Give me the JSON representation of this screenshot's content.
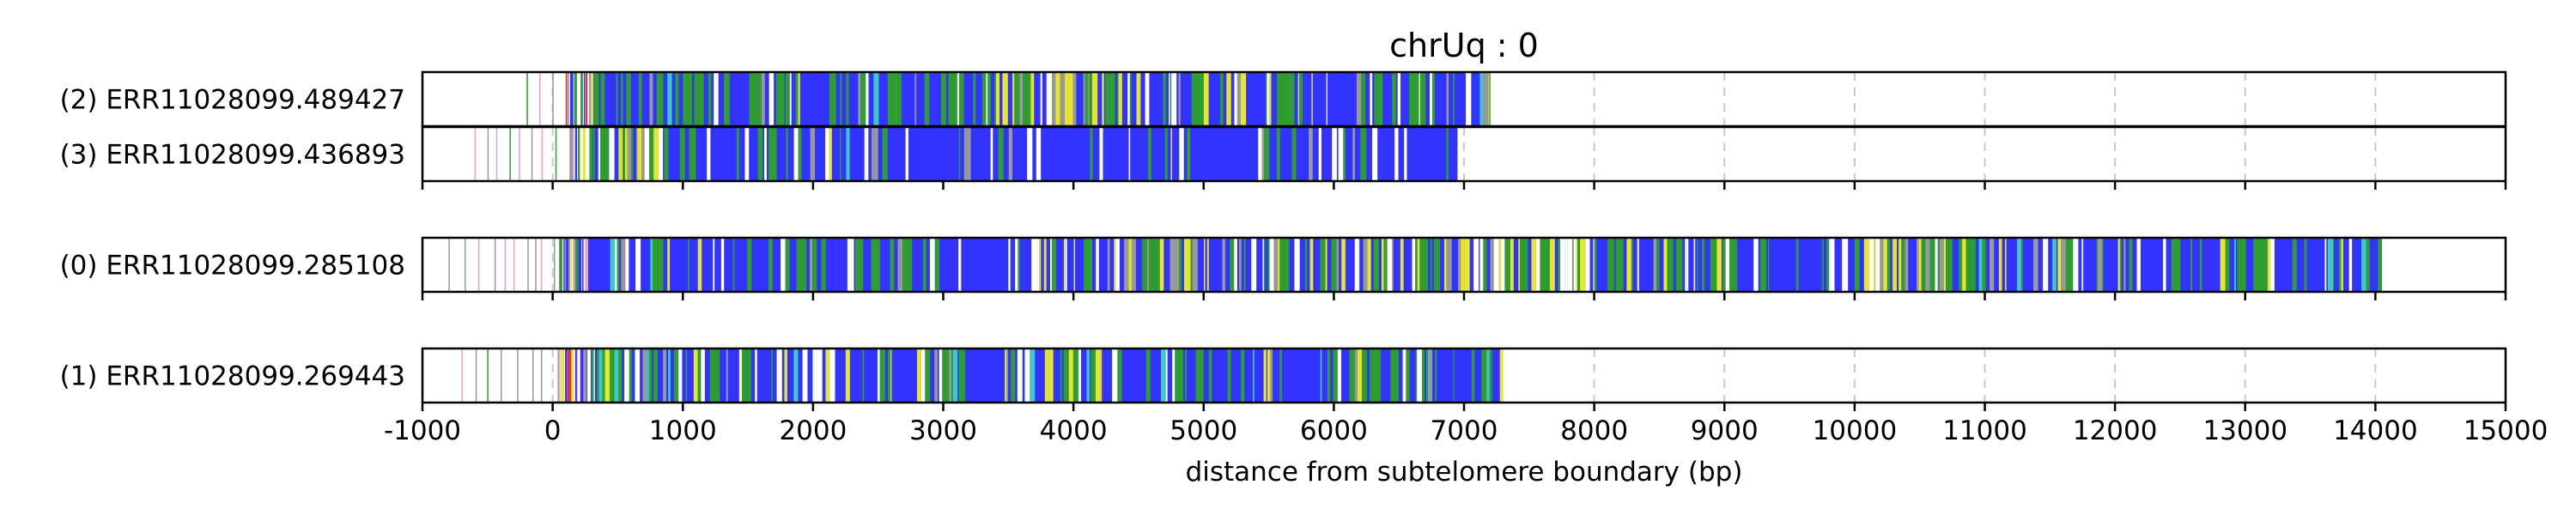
{
  "chart_data": {
    "type": "table",
    "title": "chrUq : 0",
    "xlabel": "distance from subtelomere boundary (bp)",
    "xlim": [
      -1000,
      15000
    ],
    "xticks": [
      -1000,
      0,
      1000,
      2000,
      3000,
      4000,
      5000,
      6000,
      7000,
      8000,
      9000,
      10000,
      11000,
      12000,
      13000,
      14000,
      15000
    ],
    "xtick_labels": [
      "-1000",
      "0",
      "1000",
      "2000",
      "3000",
      "4000",
      "5000",
      "6000",
      "7000",
      "8000",
      "9000",
      "10000",
      "11000",
      "12000",
      "13000",
      "14000",
      "15000"
    ],
    "grid": "vertical dashed",
    "colors": {
      "blue": "#3333ff",
      "green": "#2e9e2e",
      "yellow": "#e6e62e",
      "white": "#ffffff",
      "gray": "#999999",
      "red": "#e03030",
      "pink": "#e8a0d0",
      "cyan": "#40c8c8"
    },
    "reads": [
      {
        "label": "(2) ERR11028099.489427",
        "group": 0,
        "start": -200,
        "end": 7200,
        "dense_start": 300,
        "regions": [
          {
            "from": -200,
            "to": 300,
            "palette": "mixed"
          },
          {
            "from": 300,
            "to": 1000,
            "palette": "blue_green"
          },
          {
            "from": 1000,
            "to": 1900,
            "palette": "green_heavy"
          },
          {
            "from": 1900,
            "to": 3300,
            "palette": "blue_green"
          },
          {
            "from": 3300,
            "to": 5100,
            "palette": "green_yellow"
          },
          {
            "from": 5100,
            "to": 7200,
            "palette": "blue_green"
          }
        ]
      },
      {
        "label": "(3) ERR11028099.436893",
        "group": 0,
        "start": -600,
        "end": 6950,
        "dense_start": 300,
        "regions": [
          {
            "from": -600,
            "to": 350,
            "palette": "mixed"
          },
          {
            "from": 350,
            "to": 1100,
            "palette": "green_yellow"
          },
          {
            "from": 1100,
            "to": 2500,
            "palette": "blue_green"
          },
          {
            "from": 2500,
            "to": 6950,
            "palette": "blue_sparse"
          }
        ]
      },
      {
        "label": "(0) ERR11028099.285108",
        "group": 1,
        "start": -800,
        "end": 14050,
        "dense_start": 250,
        "regions": [
          {
            "from": -800,
            "to": 250,
            "palette": "mixed"
          },
          {
            "from": 250,
            "to": 3000,
            "palette": "blue_green"
          },
          {
            "from": 3000,
            "to": 3500,
            "palette": "blue_sparse"
          },
          {
            "from": 3500,
            "to": 8500,
            "palette": "green_yellow"
          },
          {
            "from": 8500,
            "to": 10000,
            "palette": "blue_green"
          },
          {
            "from": 10000,
            "to": 10700,
            "palette": "green_yellow"
          },
          {
            "from": 10700,
            "to": 14050,
            "palette": "blue_green"
          }
        ]
      },
      {
        "label": "(1) ERR11028099.269443",
        "group": 2,
        "start": -700,
        "end": 7300,
        "dense_start": 250,
        "regions": [
          {
            "from": -700,
            "to": 300,
            "palette": "mixed"
          },
          {
            "from": 300,
            "to": 2900,
            "palette": "blue_green"
          },
          {
            "from": 2900,
            "to": 5950,
            "palette": "blue_green"
          },
          {
            "from": 5950,
            "to": 6700,
            "palette": "green_heavy"
          },
          {
            "from": 6700,
            "to": 7300,
            "palette": "blue_green"
          }
        ]
      }
    ]
  }
}
